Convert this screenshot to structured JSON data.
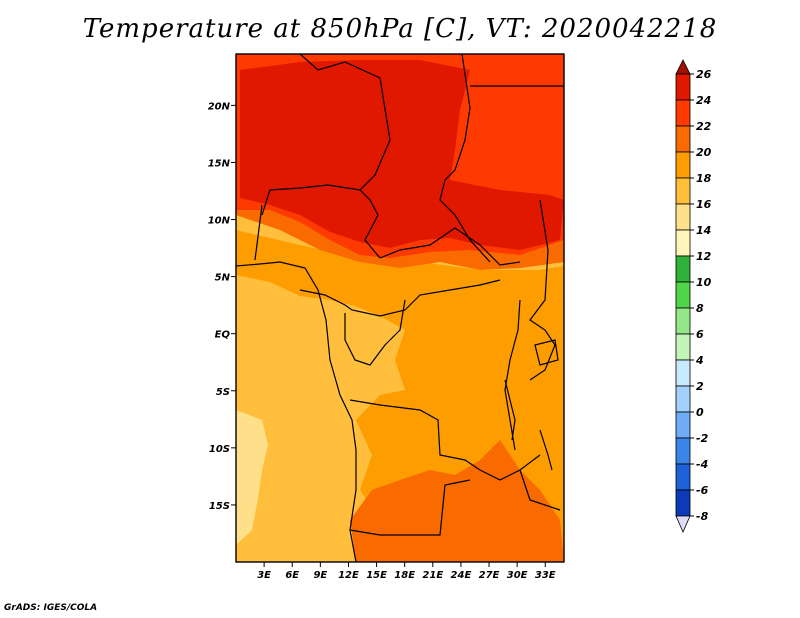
{
  "title": "Temperature at 850hPa [C], VT: 2020042218",
  "credit": "GrADS: IGES/COLA",
  "map": {
    "x_ticks": [
      "3E",
      "6E",
      "9E",
      "12E",
      "15E",
      "18E",
      "21E",
      "24E",
      "27E",
      "30E",
      "33E"
    ],
    "y_ticks": [
      "20N",
      "15N",
      "10N",
      "5N",
      "EQ",
      "5S",
      "10S",
      "15S"
    ],
    "lon_range": [
      0,
      35
    ],
    "lat_range": [
      -20,
      24.5
    ]
  },
  "colorbar": {
    "levels": [
      "26",
      "24",
      "22",
      "20",
      "18",
      "16",
      "14",
      "12",
      "10",
      "8",
      "6",
      "4",
      "2",
      "0",
      "-2",
      "-4",
      "-6",
      "-8"
    ],
    "colors": [
      "#a01000",
      "#e11800",
      "#ff3a00",
      "#f96a00",
      "#fd9d00",
      "#ffbf3c",
      "#ffe08a",
      "#fff5b8",
      "#2eb23a",
      "#50d44a",
      "#94e788",
      "#c4f5b8",
      "#c8eaff",
      "#a2d2fc",
      "#6eacf6",
      "#3a86e8",
      "#1c62d6",
      "#0c3ab8",
      "#06218d",
      "#dcdcf4"
    ]
  },
  "fields": {
    "t26": "#e11800",
    "t24": "#ff3a00",
    "t22": "#f96a00",
    "t20": "#fd9d00",
    "t18": "#ffbf3c",
    "t16": "#ffe08a"
  }
}
